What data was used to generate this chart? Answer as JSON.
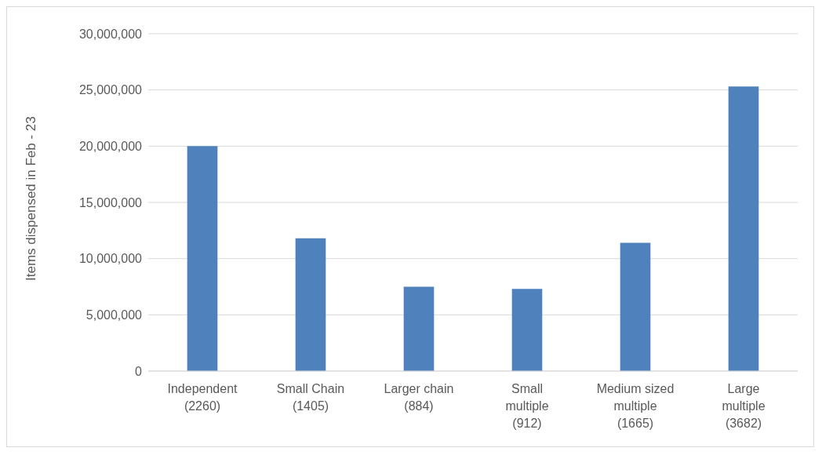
{
  "chart_data": {
    "type": "bar",
    "ylabel": "Items dispensed in Feb - 23",
    "categories": [
      "Independent (2260)",
      "Small Chain (1405)",
      "Larger chain (884)",
      "Small multiple (912)",
      "Medium sized multiple (1665)",
      "Large multiple (3682)"
    ],
    "values": [
      20000000,
      11800000,
      7500000,
      7300000,
      11400000,
      25300000
    ],
    "color": "#4f81bd",
    "ylim": [
      0,
      30000000
    ],
    "yticks": [
      0,
      {
        "value": 5000000,
        "label": "5,000,000"
      },
      {
        "value": 10000000,
        "label": "10,000,000"
      },
      {
        "value": 15000000,
        "label": "15,000,000"
      },
      {
        "value": 20000000,
        "label": "20,000,000"
      },
      {
        "value": 25000000,
        "label": "25,000,000"
      },
      {
        "value": 30000000,
        "label": "30,000,000"
      }
    ],
    "grid": "y",
    "legend": false
  }
}
